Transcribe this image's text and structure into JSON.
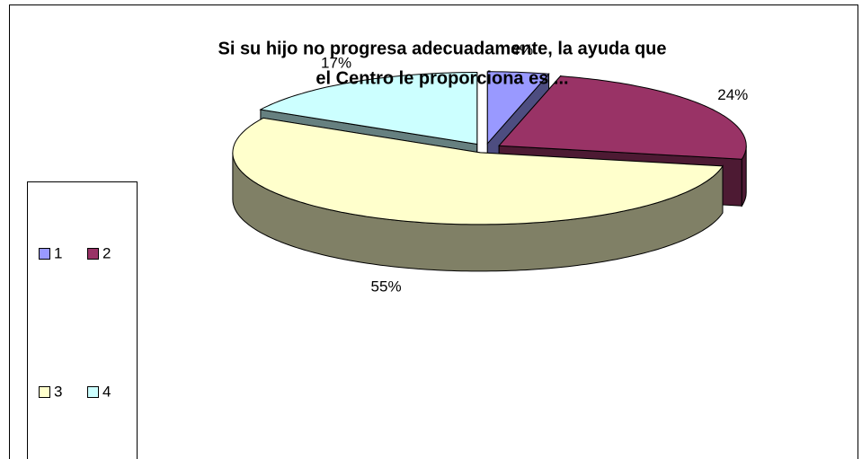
{
  "chart_data": {
    "type": "pie",
    "title": [
      "Si su hijo no progresa adecuadamente, la ayuda que",
      "el Centro le proporciona es ..."
    ],
    "categories": [
      "1",
      "2",
      "3",
      "4"
    ],
    "values": [
      4,
      24,
      55,
      17
    ],
    "value_labels": [
      "4%",
      "24%",
      "55%",
      "17%"
    ],
    "colors": [
      "#9999ff",
      "#993366",
      "#ffffcc",
      "#ccffff"
    ],
    "legend": "left"
  }
}
